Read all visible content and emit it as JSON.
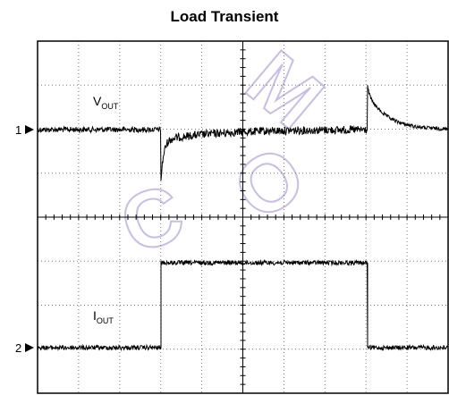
{
  "title": "Load Transient",
  "channels": [
    {
      "marker": "1",
      "name": "V",
      "subscript": "OUT"
    },
    {
      "marker": "2",
      "name": "I",
      "subscript": "OUT"
    }
  ],
  "watermark": [
    "C",
    "O",
    "M"
  ]
}
